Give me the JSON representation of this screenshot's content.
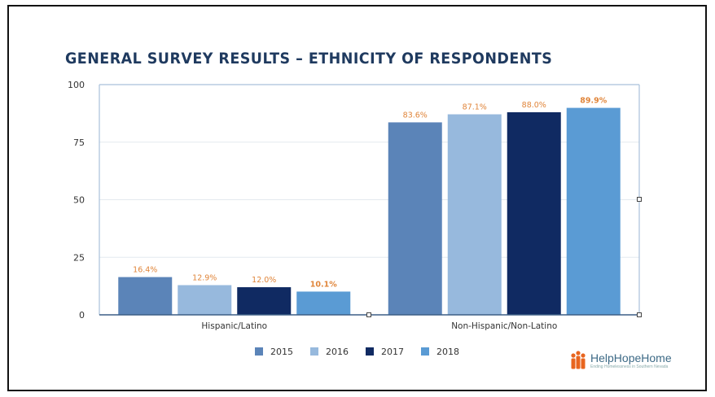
{
  "title": "GENERAL SURVEY RESULTS – ETHNICITY OF RESPONDENTS",
  "logo": {
    "name": "HelpHopeHome",
    "tagline": "Ending Homelessness in Southern Nevada",
    "icon": "house-people-icon",
    "color": "#e8651f"
  },
  "chart_data": {
    "type": "bar",
    "categories": [
      "Hispanic/Latino",
      "Non-Hispanic/Non-Latino"
    ],
    "series": [
      {
        "name": "2015",
        "color": "#5b84b8",
        "values": [
          16.4,
          83.6
        ],
        "labels": [
          "16.4%",
          "83.6%"
        ]
      },
      {
        "name": "2016",
        "color": "#97b9dd",
        "values": [
          12.9,
          87.1
        ],
        "labels": [
          "12.9%",
          "87.1%"
        ]
      },
      {
        "name": "2017",
        "color": "#102a62",
        "values": [
          12.0,
          88.0
        ],
        "labels": [
          "12.0%",
          "88.0%"
        ]
      },
      {
        "name": "2018",
        "color": "#5a9bd4",
        "values": [
          10.1,
          89.9
        ],
        "labels": [
          "10.1%",
          "89.9%"
        ],
        "bold_labels": true
      }
    ],
    "ylim": [
      0,
      100
    ],
    "yticks": [
      0,
      25,
      50,
      75,
      100
    ],
    "ytick_labels": [
      "0",
      "25",
      "50",
      "75",
      "100"
    ],
    "grid": true,
    "legend": "bottom-center",
    "label_color": "#e0853a"
  }
}
